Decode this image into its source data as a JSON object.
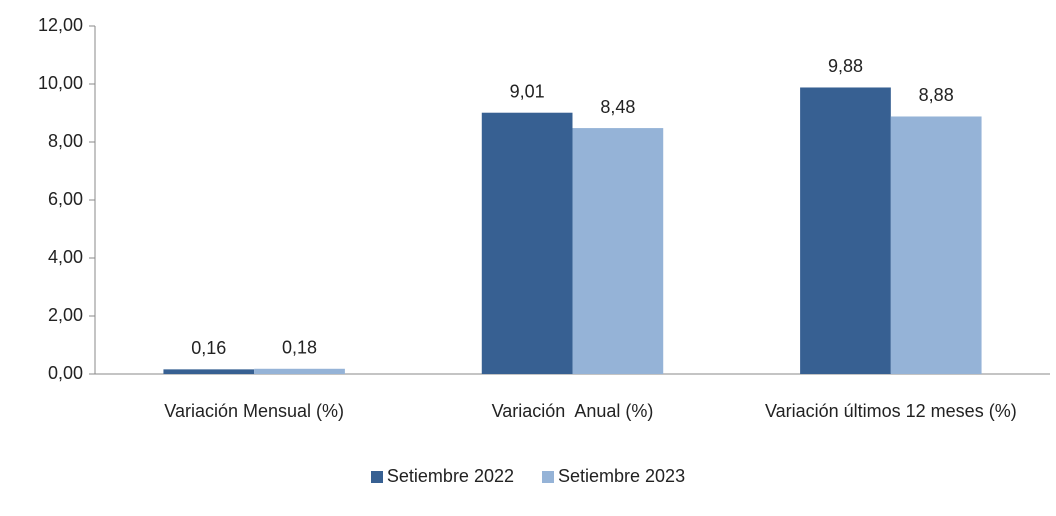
{
  "chart_data": {
    "type": "bar",
    "categories": [
      "Variación Mensual (%)",
      "Variación  Anual (%)",
      "Variación últimos 12 meses (%)"
    ],
    "series": [
      {
        "name": "Setiembre 2022",
        "color": "#376092",
        "values": [
          0.16,
          9.01,
          9.88
        ],
        "value_labels": [
          "0,16",
          "9,01",
          "9,88"
        ]
      },
      {
        "name": "Setiembre 2023",
        "color": "#95b3d7",
        "values": [
          0.18,
          8.48,
          8.88
        ],
        "value_labels": [
          "0,18",
          "8,48",
          "8,88"
        ]
      }
    ],
    "ylim": [
      0,
      12
    ],
    "yticks": [
      {
        "value": 0,
        "label": "0,00"
      },
      {
        "value": 2,
        "label": "2,00"
      },
      {
        "value": 4,
        "label": "4,00"
      },
      {
        "value": 6,
        "label": "6,00"
      },
      {
        "value": 8,
        "label": "8,00"
      },
      {
        "value": 10,
        "label": "10,00"
      },
      {
        "value": 12,
        "label": "12,00"
      }
    ],
    "grid": false,
    "legend": "bottom"
  }
}
